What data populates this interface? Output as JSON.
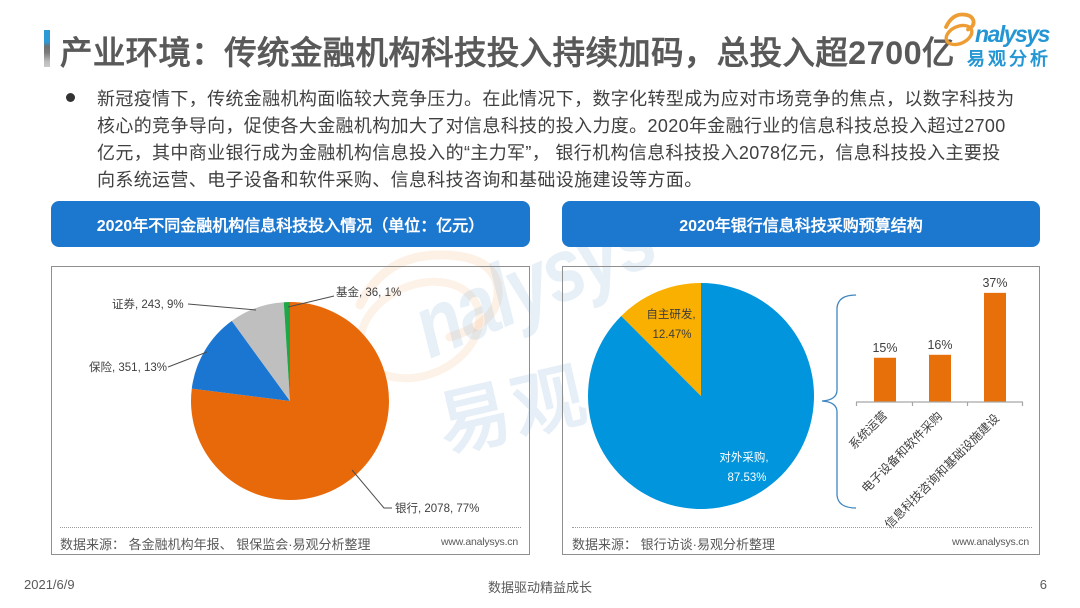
{
  "page": {
    "title": "产业环境：传统金融机构科技投入持续加码，总投入超2700亿",
    "footer": {
      "date": "2021/6/9",
      "slogan": "数据驱动精益成长",
      "page_number": "6"
    }
  },
  "logo": {
    "brand_en": "nalysys",
    "brand_cn": "易观分析"
  },
  "watermark": {
    "text_en": "nalysys",
    "text_cn": "易观"
  },
  "bullet": {
    "lines": [
      "新冠疫情下，传统金融机构面临较大竞争压力。在此情况下，数字化转型成为应对市场竞争的焦点，以数字科技为",
      "核心的竞争导向，促使各大金融机构加大了对信息科技的投入力度。2020年金融行业的信息科技总投入超过2700",
      "亿元，其中商业银行成为金融机构信息投入的“主力军”， 银行机构信息科技投入2078亿元，信息科技投入主要投",
      "向系统运营、电子设备和软件采购、信息科技咨询和基础设施建设等方面。"
    ]
  },
  "left_panel": {
    "header": "2020年不同金融机构信息科技投入情况（单位：亿元）",
    "source": "数据来源： 各金融机构年报、 银保监会·易观分析整理",
    "website": "www.analysys.cn"
  },
  "right_panel": {
    "header": "2020年银行信息科技采购预算结构",
    "source": "数据来源： 银行访谈·易观分析整理",
    "website": "www.analysys.cn"
  },
  "chart_data": [
    {
      "type": "pie",
      "title": "2020年不同金融机构信息科技投入情况（单位：亿元）",
      "unit": "亿元",
      "labels": [
        "银行",
        "保险",
        "证券",
        "基金"
      ],
      "values": [
        2078,
        351,
        243,
        36
      ],
      "percents": [
        77,
        13,
        9,
        1
      ],
      "data_labels": [
        "银行, 2078, 77%",
        "保险, 351, 13%",
        "证券, 243, 9%",
        "基金, 36, 1%"
      ],
      "colors": [
        "#e8690a",
        "#1b76d2",
        "#bfbfbf",
        "#1fa646"
      ],
      "start_angle_deg": 0,
      "direction": "clockwise"
    },
    {
      "type": "pie",
      "title": "2020年银行信息科技采购预算结构",
      "labels": [
        "对外采购",
        "自主研发"
      ],
      "values": [
        87.53,
        12.47
      ],
      "data_labels": [
        [
          "对外采购,",
          "87.53%"
        ],
        [
          "自主研发,",
          "12.47%"
        ]
      ],
      "colors": [
        "#0095dc",
        "#f9b001"
      ],
      "start_angle_deg": 0,
      "direction": "clockwise"
    },
    {
      "type": "bar",
      "categories": [
        "系统运营",
        "电子设备和软件采购",
        "信息科技咨询和基础设施建设"
      ],
      "values": [
        15,
        16,
        37
      ],
      "value_labels": [
        "15%",
        "16%",
        "37%"
      ],
      "color": "#e8700a",
      "ylim": [
        0,
        40
      ]
    }
  ]
}
